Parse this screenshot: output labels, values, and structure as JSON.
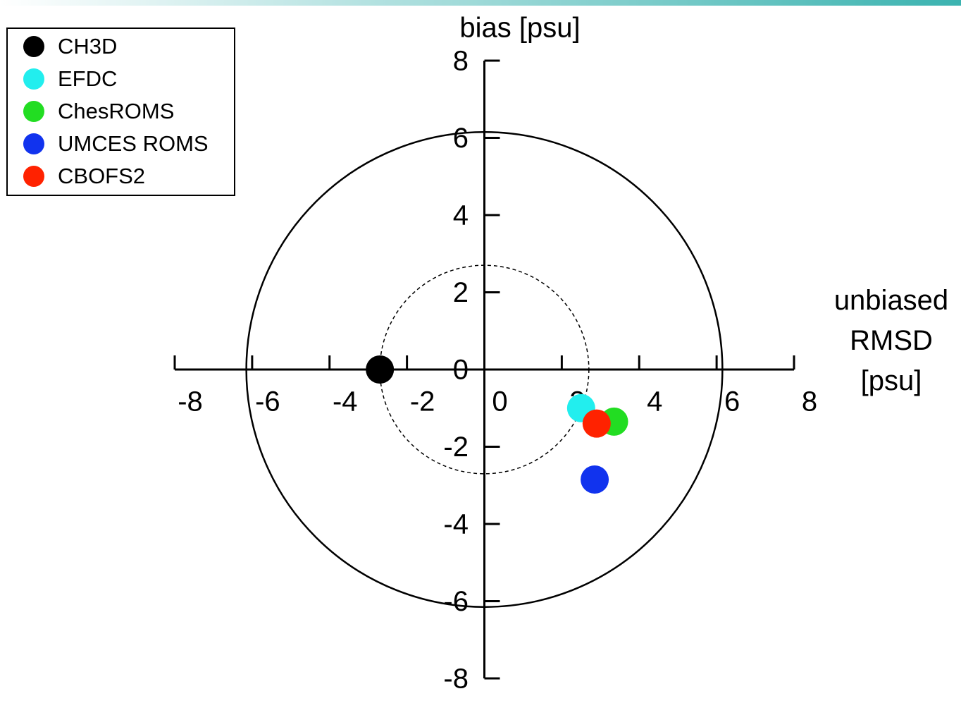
{
  "chart_data": {
    "type": "scatter",
    "title": "bias [psu]",
    "x_label": "unbiased RMSD [psu]",
    "xlim": [
      -8,
      8
    ],
    "ylim": [
      -8,
      8
    ],
    "xticks": [
      -8,
      -6,
      -4,
      -2,
      0,
      2,
      4,
      6,
      8
    ],
    "yticks": [
      -8,
      -6,
      -4,
      -2,
      0,
      2,
      4,
      6,
      8
    ],
    "reference_circles": [
      {
        "radius": 6.15,
        "style": "solid"
      },
      {
        "radius": 2.7,
        "style": "dashed"
      }
    ],
    "legend": "top-left",
    "series": [
      {
        "name": "CH3D",
        "color": "#000000",
        "x": [
          -2.7
        ],
        "values": [
          0
        ]
      },
      {
        "name": "EFDC",
        "color": "#22eeee",
        "x": [
          2.5
        ],
        "values": [
          -1.0
        ]
      },
      {
        "name": "ChesROMS",
        "color": "#22dd22",
        "x": [
          3.35
        ],
        "values": [
          -1.35
        ]
      },
      {
        "name": "UMCES ROMS",
        "color": "#1133ee",
        "x": [
          2.85
        ],
        "values": [
          -2.85
        ]
      },
      {
        "name": "CBOFS2",
        "color": "#ff2200",
        "x": [
          2.9
        ],
        "values": [
          -1.4
        ]
      }
    ]
  }
}
